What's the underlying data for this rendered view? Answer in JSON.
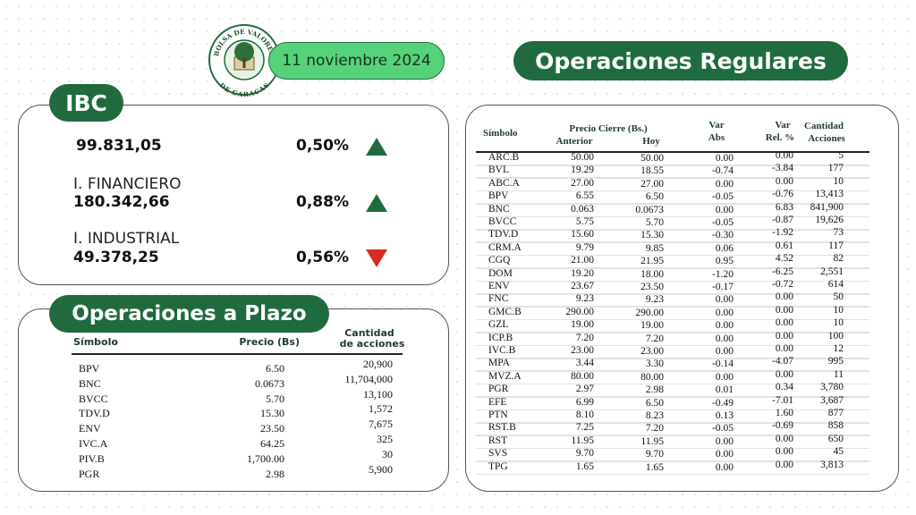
{
  "header": {
    "logo": {
      "top": "BOLSA DE VALORES",
      "bottom": "DE CARACAS"
    },
    "date": "11 noviembre 2024"
  },
  "ibc": {
    "title": "IBC",
    "rows": [
      {
        "label": null,
        "value": "99.831,05",
        "change": "0,50%",
        "direction": "up"
      },
      {
        "label": "I. FINANCIERO",
        "value": "180.342,66",
        "change": "0,88%",
        "direction": "up"
      },
      {
        "label": "I. INDUSTRIAL",
        "value": "49.378,25",
        "change": "0,56%",
        "direction": "down"
      }
    ]
  },
  "plazo": {
    "title": "Operaciones a Plazo",
    "headers": {
      "simbolo": "Símbolo",
      "precio": "Precio (Bs)",
      "cantidad": [
        "Cantidad",
        "de acciones"
      ]
    },
    "rows": [
      [
        "BPV",
        "6.50",
        "20,900"
      ],
      [
        "BNC",
        "0.0673",
        "11,704,000"
      ],
      [
        "BVCC",
        "5.70",
        "13,100"
      ],
      [
        "TDV.D",
        "15.30",
        "1,572"
      ],
      [
        "ENV",
        "23.50",
        "7,675"
      ],
      [
        "IVC.A",
        "64.25",
        "325"
      ],
      [
        "PIV.B",
        "1,700.00",
        "30"
      ],
      [
        "PGR",
        "2.98",
        "5,900"
      ]
    ]
  },
  "regulares": {
    "title": "Operaciones Regulares",
    "headers": {
      "simbolo": "Símbolo",
      "precio_cierre": "Precio Cierre (Bs.)",
      "anterior": "Anterior",
      "hoy": "Hoy",
      "var_abs": [
        "Var",
        "Abs"
      ],
      "var_rel": [
        "Var",
        "Rel. %"
      ],
      "cantidad": [
        "Cantidad",
        "Acciones"
      ]
    },
    "rows": [
      [
        "ARC.B",
        "50.00",
        "50.00",
        "0.00",
        "0.00",
        "5"
      ],
      [
        "BVL",
        "19.29",
        "18.55",
        "-0.74",
        "-3.84",
        "177"
      ],
      [
        "ABC.A",
        "27.00",
        "27.00",
        "0.00",
        "0.00",
        "10"
      ],
      [
        "BPV",
        "6.55",
        "6.50",
        "-0.05",
        "-0.76",
        "13,413"
      ],
      [
        "BNC",
        "0.063",
        "0.0673",
        "0.00",
        "6.83",
        "841,900"
      ],
      [
        "BVCC",
        "5.75",
        "5.70",
        "-0.05",
        "-0.87",
        "19,626"
      ],
      [
        "TDV.D",
        "15.60",
        "15.30",
        "-0.30",
        "-1.92",
        "73"
      ],
      [
        "CRM.A",
        "9.79",
        "9.85",
        "0.06",
        "0.61",
        "117"
      ],
      [
        "CGQ",
        "21.00",
        "21.95",
        "0.95",
        "4.52",
        "82"
      ],
      [
        "DOM",
        "19.20",
        "18.00",
        "-1.20",
        "-6.25",
        "2,551"
      ],
      [
        "ENV",
        "23.67",
        "23.50",
        "-0.17",
        "-0.72",
        "614"
      ],
      [
        "FNC",
        "9.23",
        "9.23",
        "0.00",
        "0.00",
        "50"
      ],
      [
        "GMC.B",
        "290.00",
        "290.00",
        "0.00",
        "0.00",
        "10"
      ],
      [
        "GZL",
        "19.00",
        "19.00",
        "0.00",
        "0.00",
        "10"
      ],
      [
        "ICP.B",
        "7.20",
        "7.20",
        "0.00",
        "0.00",
        "100"
      ],
      [
        "IVC.B",
        "23.00",
        "23.00",
        "0.00",
        "0.00",
        "12"
      ],
      [
        "MPA",
        "3.44",
        "3.30",
        "-0.14",
        "-4.07",
        "995"
      ],
      [
        "MVZ.A",
        "80.00",
        "80.00",
        "0.00",
        "0.00",
        "11"
      ],
      [
        "PGR",
        "2.97",
        "2.98",
        "0.01",
        "0.34",
        "3,780"
      ],
      [
        "EFE",
        "6.99",
        "6.50",
        "-0.49",
        "-7.01",
        "3,687"
      ],
      [
        "PTN",
        "8.10",
        "8.23",
        "0.13",
        "1.60",
        "877"
      ],
      [
        "RST.B",
        "7.25",
        "7.20",
        "-0.05",
        "-0.69",
        "858"
      ],
      [
        "RST",
        "11.95",
        "11.95",
        "0.00",
        "0.00",
        "650"
      ],
      [
        "SVS",
        "9.70",
        "9.70",
        "0.00",
        "0.00",
        "45"
      ],
      [
        "TPG",
        "1.65",
        "1.65",
        "0.00",
        "0.00",
        "3,813"
      ]
    ]
  }
}
